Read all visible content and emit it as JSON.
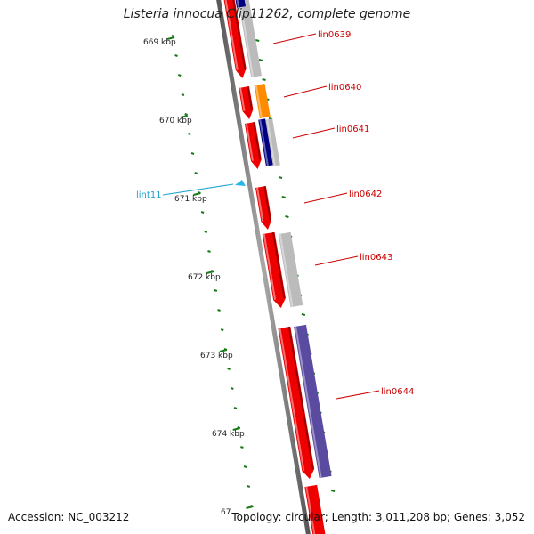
{
  "title": "Listeria innocua Clip11262, complete genome",
  "footer": {
    "accession": "Accession: NC_003212",
    "summary": "Topology: circular; Length: 3,011,208 bp; Genes: 3,052"
  },
  "colors": {
    "backbone": "#777777",
    "tick": "#1a7a1a",
    "gene_label": "#cc0000",
    "feature_label": "#1aa3cc",
    "cds_red": "#ee0000",
    "cds_gray": "#bbbbbb",
    "cds_navy": "#000080",
    "cds_orange": "#ff8c00",
    "cds_purple": "#5a4aa0"
  },
  "scale_labels": [
    "669 kbp",
    "670 kbp",
    "671 kbp",
    "672 kbp",
    "673 kbp",
    "674 kbp",
    "67"
  ],
  "gene_labels": [
    "lin0639",
    "lin0640",
    "lin0641",
    "lin0642",
    "lin0643",
    "lin0644"
  ],
  "feature_labels": [
    "lint11"
  ]
}
